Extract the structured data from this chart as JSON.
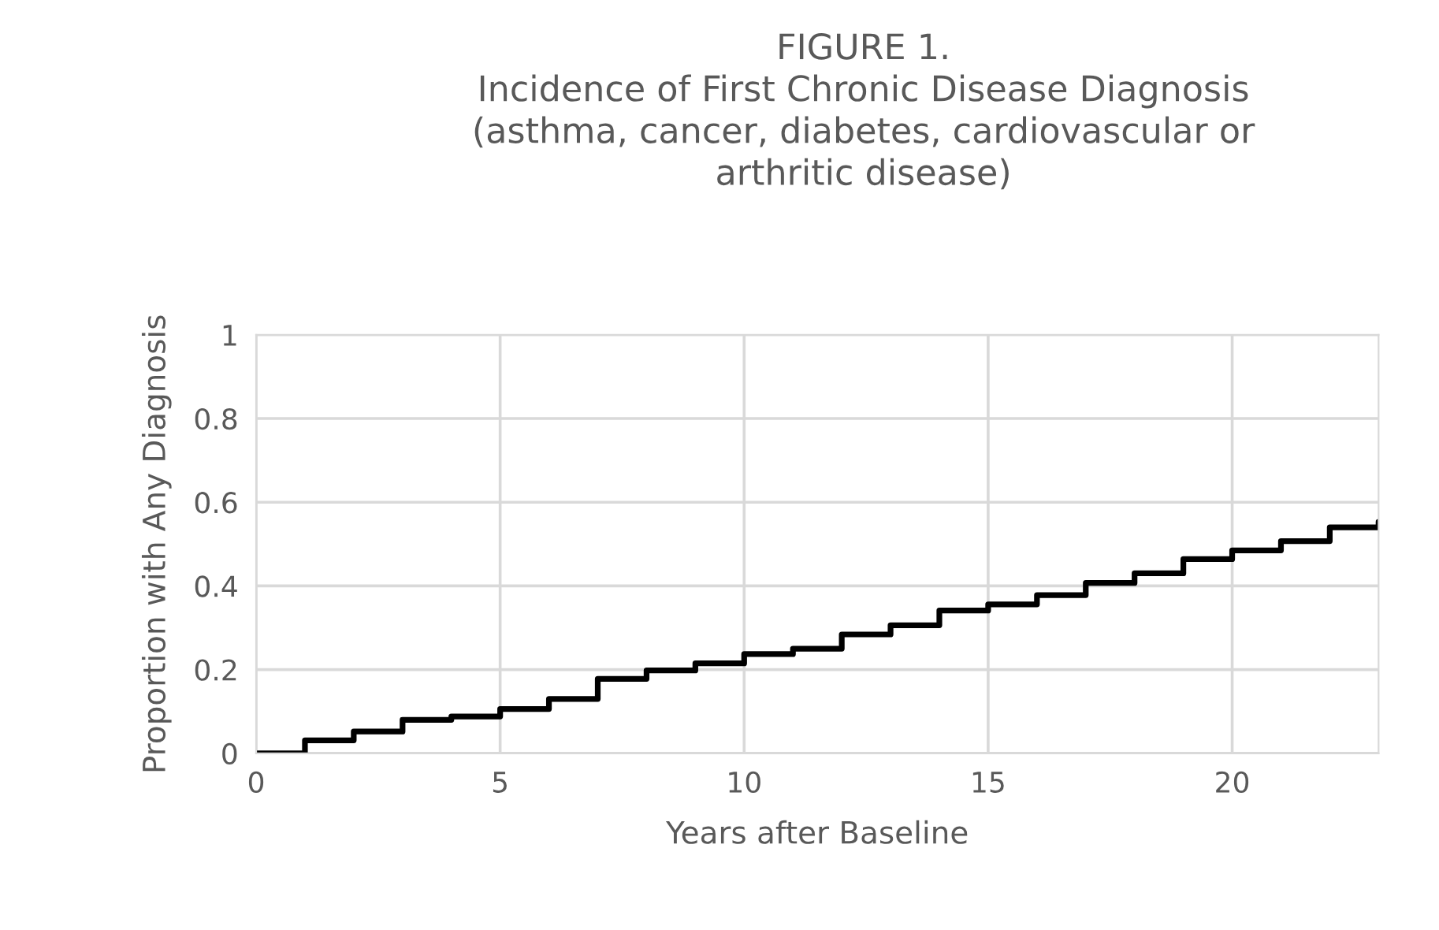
{
  "chart_data": {
    "type": "step",
    "title": "FIGURE 1.\nIncidence of First Chronic Disease Diagnosis\n(asthma, cancer, diabetes, cardiovascular or\narthritic disease)",
    "xlabel": "Years after Baseline",
    "ylabel": "Proportion with Any Diagnosis",
    "x": [
      0,
      1,
      2,
      3,
      4,
      5,
      6,
      7,
      8,
      9,
      10,
      11,
      12,
      13,
      14,
      15,
      16,
      17,
      18,
      19,
      20,
      21,
      22,
      23
    ],
    "series": [
      {
        "color": "#000000",
        "values": [
          0,
          0.031,
          0.052,
          0.08,
          0.088,
          0.106,
          0.13,
          0.178,
          0.198,
          0.215,
          0.237,
          0.25,
          0.284,
          0.306,
          0.341,
          0.356,
          0.378,
          0.407,
          0.43,
          0.464,
          0.485,
          0.507,
          0.54,
          0.553
        ]
      }
    ],
    "xlim": [
      0,
      23
    ],
    "ylim": [
      0,
      1
    ],
    "xticks": [
      0,
      5,
      10,
      15,
      20
    ],
    "yticks": [
      0,
      {
        "value": 0.2,
        "label": "0.2"
      },
      {
        "value": 0.4,
        "label": "0.4"
      },
      {
        "value": 0.6,
        "label": "0.6"
      },
      {
        "value": 0.8,
        "label": "0.8"
      },
      1
    ],
    "grid": true,
    "line_style": "solid",
    "marker": "none"
  }
}
